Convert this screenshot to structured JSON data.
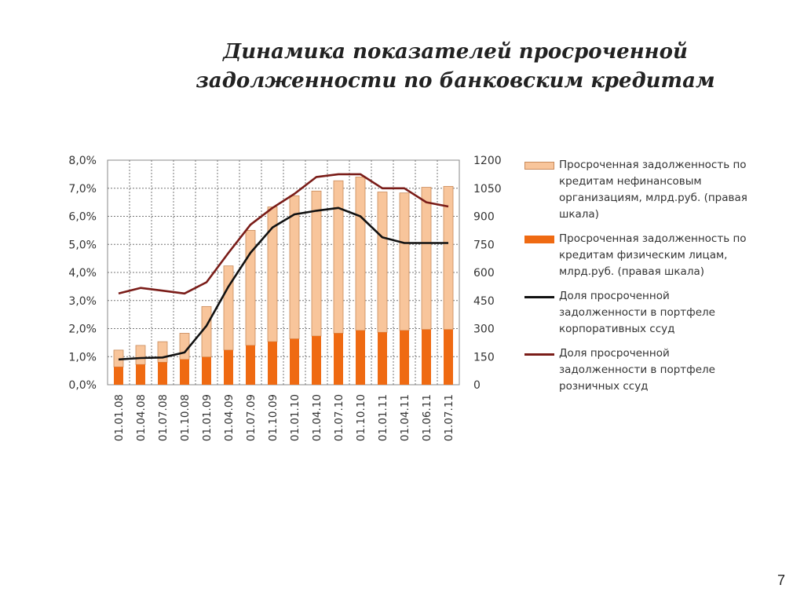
{
  "title": {
    "line1": "Динамика показателей просроченной",
    "line2": "задолженности по банковским кредитам"
  },
  "page_number": "7",
  "colors": {
    "corporate_bar": "#f8c59b",
    "retail_bar": "#ef6a12",
    "corporate_line": "#111111",
    "retail_line": "#7a1c18",
    "bar_border": "#c98a5a"
  },
  "legend": [
    {
      "key": "corporate_bar",
      "label": "Просроченная задолженность по кредитам нефинансовым организациям, млрд.руб. (правая шкала)"
    },
    {
      "key": "retail_bar",
      "label": "Просроченная задолженность по кредитам физическим лицам, млрд.руб. (правая шкала)"
    },
    {
      "key": "corporate_line",
      "label": "Доля просроченной задолженности в портфеле корпоративных ссуд"
    },
    {
      "key": "retail_line",
      "label": "Доля просроченной задолженности в портфеле розничных ссуд"
    }
  ],
  "chart_data": {
    "type": "bar",
    "categories": [
      "01.01.08",
      "01.04.08",
      "01.07.08",
      "01.10.08",
      "01.01.09",
      "01.04.09",
      "01.07.09",
      "01.10.09",
      "01.01.10",
      "01.04.10",
      "01.07.10",
      "01.10.10",
      "01.01.11",
      "01.04.11",
      "01.06.11",
      "01.07.11"
    ],
    "left_axis": {
      "ylim": [
        0,
        8
      ],
      "ticks": [
        "0,0%",
        "1,0%",
        "2,0%",
        "3,0%",
        "4,0%",
        "5,0%",
        "6,0%",
        "7,0%",
        "8,0%"
      ]
    },
    "right_axis": {
      "ylim": [
        0,
        1200
      ],
      "ticks": [
        "0",
        "150",
        "300",
        "450",
        "600",
        "750",
        "900",
        "1050",
        "1200"
      ]
    },
    "grid": true,
    "legend_position": "right",
    "series": [
      {
        "key": "retail_bar",
        "kind": "stacked-bar",
        "axis": "right",
        "values": [
          95,
          108,
          120,
          135,
          148,
          185,
          210,
          230,
          245,
          260,
          275,
          290,
          280,
          290,
          295,
          295
        ]
      },
      {
        "key": "corporate_bar",
        "kind": "stacked-bar",
        "axis": "right",
        "values": [
          90,
          102,
          110,
          140,
          270,
          450,
          615,
          720,
          765,
          775,
          815,
          820,
          750,
          735,
          760,
          765
        ]
      },
      {
        "key": "corporate_line",
        "kind": "line",
        "axis": "left",
        "values": [
          0.9,
          0.95,
          0.97,
          1.15,
          2.1,
          3.5,
          4.7,
          5.6,
          6.07,
          6.2,
          6.3,
          6.0,
          5.25,
          5.05,
          5.05,
          5.05
        ]
      },
      {
        "key": "retail_line",
        "kind": "line",
        "axis": "left",
        "values": [
          3.25,
          3.45,
          3.35,
          3.25,
          3.65,
          4.7,
          5.7,
          6.3,
          6.8,
          7.4,
          7.5,
          7.5,
          7.0,
          7.0,
          6.5,
          6.35
        ]
      }
    ]
  }
}
